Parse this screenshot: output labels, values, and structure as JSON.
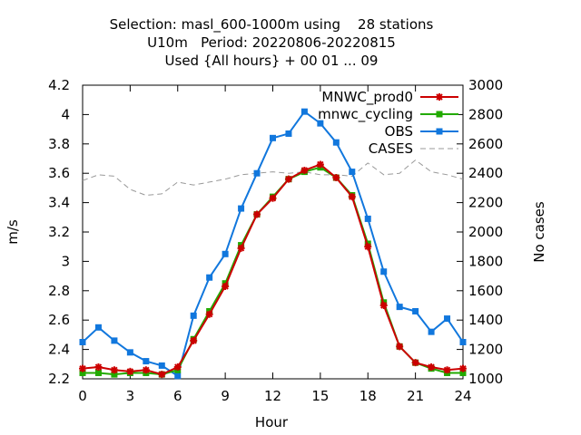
{
  "chart_data": {
    "type": "line",
    "title": [
      "Selection: masl_600-1000m using    28 stations",
      "U10m   Period: 20220806-20220815",
      "Used {All hours} + 00 01 ... 09"
    ],
    "xlabel": "Hour",
    "ylabel": "m/s",
    "y2label": "No cases",
    "xlim": [
      0,
      24
    ],
    "ylim": [
      2.2,
      4.2
    ],
    "y2lim": [
      1000,
      3000
    ],
    "xticks": [
      0,
      3,
      6,
      9,
      12,
      15,
      18,
      21,
      24
    ],
    "xtick_labels": [
      "0",
      "3",
      "6",
      "9",
      "12",
      "15",
      "18",
      "21",
      "24"
    ],
    "yticks": [
      2.2,
      2.4,
      2.6,
      2.8,
      3.0,
      3.2,
      3.4,
      3.6,
      3.8,
      4.0,
      4.2
    ],
    "ytick_labels": [
      "2.2",
      "2.4",
      "2.6",
      "2.8",
      "3",
      "3.2",
      "3.4",
      "3.6",
      "3.8",
      "4",
      "4.2"
    ],
    "y2ticks": [
      1000,
      1200,
      1400,
      1600,
      1800,
      2000,
      2200,
      2400,
      2600,
      2800,
      3000
    ],
    "y2tick_labels": [
      "1000",
      "1200",
      "1400",
      "1600",
      "1800",
      "2000",
      "2200",
      "2400",
      "2600",
      "2800",
      "3000"
    ],
    "grid": false,
    "legend_position": "top-right",
    "x": [
      0,
      1,
      2,
      3,
      4,
      5,
      6,
      7,
      8,
      9,
      10,
      11,
      12,
      13,
      14,
      15,
      16,
      17,
      18,
      19,
      20,
      21,
      22,
      23,
      24
    ],
    "series": [
      {
        "name": "MNWC_prod0",
        "color": "#cc0000",
        "marker": "star",
        "axis": "left",
        "values": [
          2.27,
          2.28,
          2.26,
          2.25,
          2.26,
          2.23,
          2.28,
          2.46,
          2.64,
          2.83,
          3.09,
          3.32,
          3.43,
          3.56,
          3.62,
          3.66,
          3.57,
          3.44,
          3.1,
          2.7,
          2.42,
          2.31,
          2.28,
          2.26,
          2.27
        ]
      },
      {
        "name": "mnwc_cycling",
        "color": "#22aa00",
        "marker": "square",
        "axis": "left",
        "values": [
          2.24,
          2.24,
          2.23,
          2.24,
          2.24,
          2.23,
          2.26,
          2.47,
          2.66,
          2.85,
          3.11,
          3.32,
          3.44,
          3.56,
          3.61,
          3.64,
          3.57,
          3.45,
          3.12,
          2.72,
          2.42,
          2.31,
          2.27,
          2.24,
          2.24
        ]
      },
      {
        "name": "OBS",
        "color": "#1177dd",
        "marker": "square",
        "axis": "left",
        "values": [
          2.45,
          2.55,
          2.46,
          2.38,
          2.32,
          2.29,
          2.22,
          2.63,
          2.89,
          3.05,
          3.36,
          3.6,
          3.84,
          3.87,
          4.02,
          3.94,
          3.81,
          3.61,
          3.29,
          2.93,
          2.69,
          2.66,
          2.52,
          2.61,
          2.45
        ]
      },
      {
        "name": "CASES",
        "color": "#999999",
        "dashed": true,
        "axis": "right",
        "values": [
          2350,
          2390,
          2380,
          2290,
          2250,
          2260,
          2340,
          2320,
          2340,
          2360,
          2390,
          2400,
          2410,
          2400,
          2410,
          2390,
          2390,
          2380,
          2470,
          2390,
          2400,
          2490,
          2410,
          2390,
          2360
        ]
      }
    ]
  }
}
